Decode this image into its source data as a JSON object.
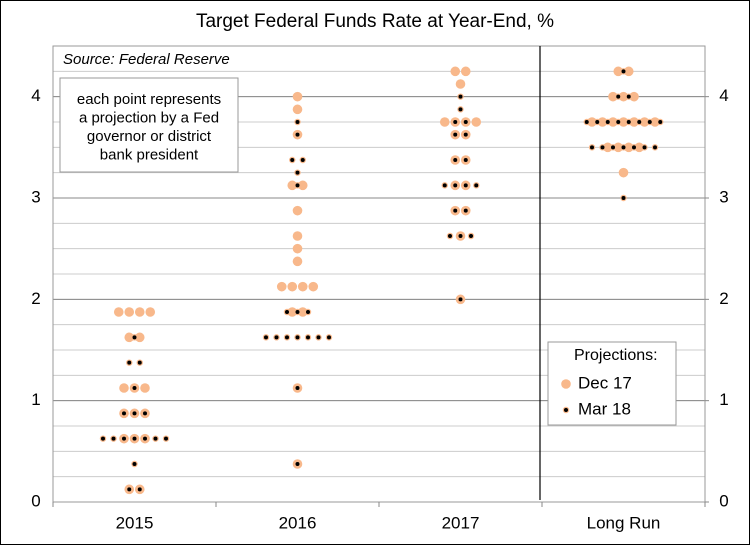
{
  "chart_data": {
    "type": "dot",
    "title": "Target Federal Funds Rate at Year-End, %",
    "source": "Source: Federal Reserve",
    "note": [
      "each point represents",
      "a projection by a Fed",
      "governor or district",
      "bank president"
    ],
    "legend_title": "Projections:",
    "categories": [
      "2015",
      "2016",
      "2017",
      "Long Run"
    ],
    "series": [
      {
        "name": "Dec 17",
        "color": "#f8b88b",
        "values": [
          [
            0.125,
            0.125,
            0.625,
            0.625,
            0.625,
            0.875,
            0.875,
            0.875,
            1.125,
            1.125,
            1.125,
            1.625,
            1.625,
            1.875,
            1.875,
            1.875,
            1.875
          ],
          [
            0.375,
            1.125,
            1.875,
            1.875,
            2.125,
            2.125,
            2.125,
            2.125,
            2.375,
            2.5,
            2.625,
            2.875,
            3.125,
            3.125,
            3.625,
            3.875,
            4.0
          ],
          [
            2.0,
            2.625,
            2.875,
            2.875,
            3.125,
            3.125,
            3.375,
            3.375,
            3.625,
            3.625,
            3.75,
            3.75,
            3.75,
            3.75,
            4.125,
            4.25,
            4.25
          ],
          [
            3.25,
            3.5,
            3.5,
            3.5,
            3.5,
            3.75,
            3.75,
            3.75,
            3.75,
            3.75,
            3.75,
            3.75,
            4.0,
            4.0,
            4.0,
            4.25,
            4.25
          ]
        ]
      },
      {
        "name": "Mar 18",
        "color": "#000000",
        "values": [
          [
            0.125,
            0.125,
            0.375,
            0.625,
            0.625,
            0.625,
            0.625,
            0.625,
            0.625,
            0.625,
            0.875,
            0.875,
            0.875,
            1.125,
            1.375,
            1.375,
            1.625
          ],
          [
            0.375,
            1.125,
            1.625,
            1.625,
            1.625,
            1.625,
            1.625,
            1.625,
            1.625,
            1.875,
            1.875,
            1.875,
            3.125,
            3.25,
            3.375,
            3.375,
            3.625,
            3.75
          ],
          [
            2.0,
            2.625,
            2.625,
            2.625,
            2.875,
            2.875,
            3.125,
            3.125,
            3.125,
            3.125,
            3.375,
            3.375,
            3.625,
            3.625,
            3.75,
            3.75,
            3.875,
            4.0
          ],
          [
            3.0,
            3.5,
            3.5,
            3.5,
            3.5,
            3.5,
            3.5,
            3.5,
            3.75,
            3.75,
            3.75,
            3.75,
            3.75,
            3.75,
            3.75,
            3.75,
            4.0,
            4.0,
            4.25
          ]
        ]
      }
    ],
    "ylim": [
      0,
      4.5
    ],
    "yticks": [
      0,
      1,
      2,
      3,
      4
    ],
    "y2lim": [
      0,
      4.5
    ],
    "y2ticks": [
      0,
      1,
      2,
      3,
      4
    ],
    "grid": true,
    "minor_grid": 0.25
  }
}
